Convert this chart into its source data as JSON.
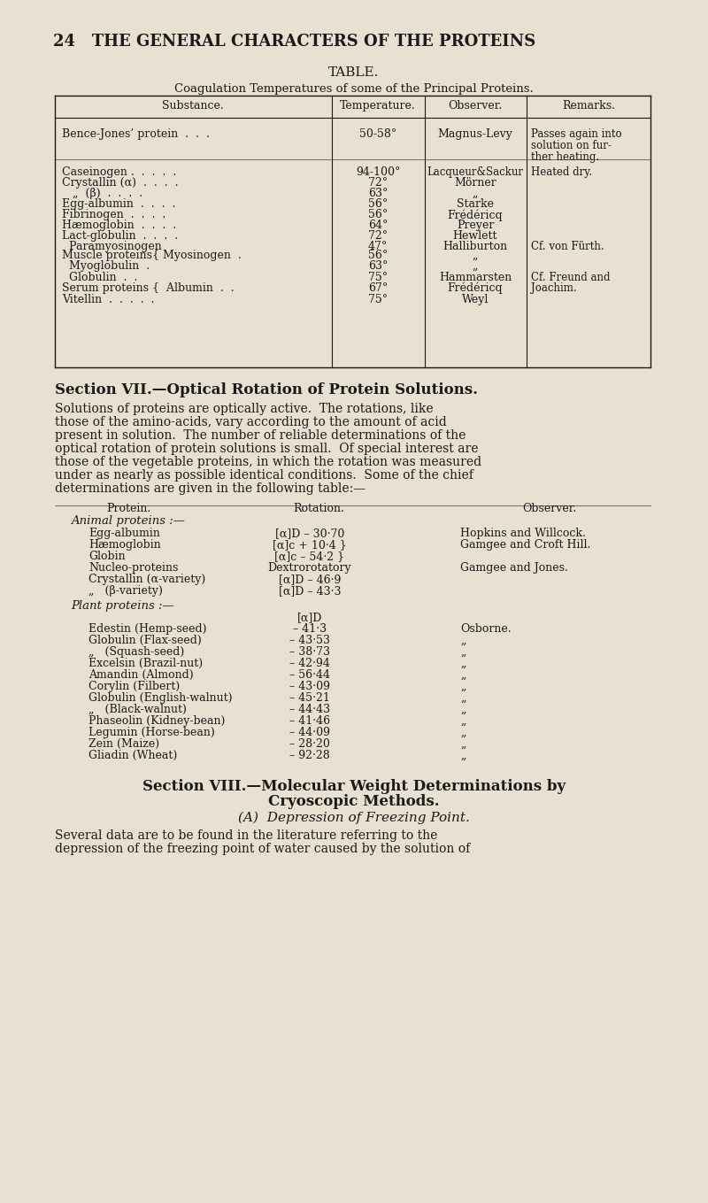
{
  "bg_color": "#e8e0d0",
  "text_color": "#1a1a1a",
  "page_title": "24   THE GENERAL CHARACTERS OF THE PROTEINS",
  "table1_title": "TABLE.",
  "table1_subtitle": "Coagulation Temperatures of some of the Principal Proteins.",
  "table1_headers": [
    "Substance.",
    "Temperature.",
    "Observer.",
    "Remarks."
  ],
  "table1_rows": [
    [
      "Bence-Jones’ protein  .  .  .",
      "50-58°",
      "Magnus-Levy",
      "Passes again into\nsolution on fur-\nther heating."
    ],
    [
      "Caseinogen .  .  .  .  .",
      "94-100°",
      "Lacqueur&Sackur",
      "Heated dry."
    ],
    [
      "Crystallin (α)  .  .  .  .",
      "72°",
      "Mörner",
      ""
    ],
    [
      "   „  (β)  .  .  .  .",
      "63°",
      "„",
      ""
    ],
    [
      "Egg-albumin  .  .  .  .",
      "56°",
      "Starke",
      ""
    ],
    [
      "Fibrinogen  .  .  .  .",
      "56°",
      "Frédéricq",
      ""
    ],
    [
      "Hæmoglobin  .  .  .  .",
      "64°",
      "Preyer",
      ""
    ],
    [
      "Lact-globulin  .  .  .  .",
      "72°",
      "Hewlett",
      ""
    ],
    [
      "  Paramyosinogen",
      "47°",
      "Halliburton",
      "Cf. von Fürth."
    ],
    [
      "Muscle proteins{ Myosinogen  .",
      "56°",
      "„",
      ""
    ],
    [
      "  Myoglobulin  .",
      "63°",
      "„",
      ""
    ],
    [
      "  Globulin  .  .",
      "75°",
      "Hammarsten",
      "Cf. Freund and"
    ],
    [
      "Serum proteins {  Albumin  .  .",
      "67°",
      "Frédéricq",
      "Joachim."
    ],
    [
      "Vitellin  .  .  .  .  .",
      "75°",
      "Weyl",
      ""
    ]
  ],
  "section7_heading": "Section VII.—Optical Rotation of Protein Solutions.",
  "section7_para": "Solutions of proteins are optically active.  The rotations, like\nthose of the amino-acids, vary according to the amount of acid\npresent in solution.  The number of reliable determinations of the\noptical rotation of protein solutions is small.  Of special interest are\nthose of the vegetable proteins, in which the rotation was measured\nunder as nearly as possible identical conditions.  Some of the chief\ndeterminations are given in the following table:—",
  "table2_headers": [
    "Protein.",
    "Rotation.",
    "Observer."
  ],
  "table2_animal_label": "Animal proteins :—",
  "table2_animal_rows": [
    [
      "Egg-albumin",
      "[α]D – 30·70",
      "Hopkins and Willcock."
    ],
    [
      "Hæmoglobin",
      "[α]c + 10·4 }",
      "Gamgee and Croft Hill."
    ],
    [
      "Globin",
      "[α]c – 54·2 }",
      ""
    ],
    [
      "Nucleo-proteins",
      "Dextrorotatory",
      "Gamgee and Jones."
    ],
    [
      "Crystallin (α-variety)",
      "[α]D – 46·9",
      ""
    ],
    [
      "„   (β-variety)",
      "[α]D – 43·3",
      ""
    ]
  ],
  "table2_plant_label": "Plant proteins :—",
  "table2_plant_header": "[α]D",
  "table2_plant_rows": [
    [
      "Edestin (Hemp-seed)",
      "– 41·3",
      "Osborne."
    ],
    [
      "Globulin (Flax-seed)",
      "– 43·53",
      "„"
    ],
    [
      "„   (Squash-seed)",
      "– 38·73",
      "„"
    ],
    [
      "Excelsin (Brazil-nut)",
      "– 42·94",
      "„"
    ],
    [
      "Amandin (Almond)",
      "– 56·44",
      "„"
    ],
    [
      "Corylin (Filbert)",
      "– 43·09",
      "„"
    ],
    [
      "Globulin (English-walnut)",
      "– 45·21",
      "„"
    ],
    [
      "„   (Black-walnut)",
      "– 44·43",
      "„"
    ],
    [
      "Phaseolin (Kidney-bean)",
      "– 41·46",
      "„"
    ],
    [
      "Legumin (Horse-bean)",
      "– 44·09",
      "„"
    ],
    [
      "Zein (Maize)",
      "– 28·20",
      "„"
    ],
    [
      "Gliadin (Wheat)",
      "– 92·28",
      "„"
    ]
  ],
  "section8_heading1": "Section VIII.—Molecular Weight Determinations by",
  "section8_heading2": "Cryoscopic Methods.",
  "section8_subheading": "(A)  Depression of Freezing Point.",
  "section8_para": "Several data are to be found in the literature referring to the\ndepression of the freezing point of water caused by the solution of"
}
